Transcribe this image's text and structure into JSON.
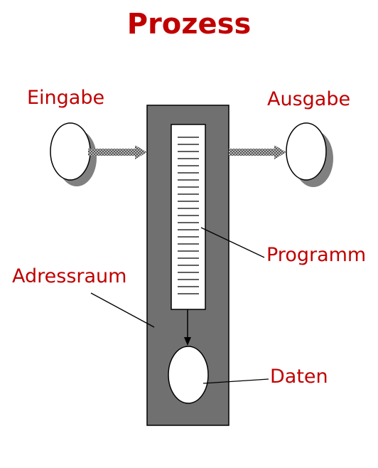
{
  "title": "Prozess",
  "labels": {
    "eingabe": "Eingabe",
    "ausgabe": "Ausgabe",
    "programm": "Programm",
    "adressraum": "Adressraum",
    "daten": "Daten"
  },
  "colors": {
    "accent_text": "#c00000",
    "address_space_fill": "#707070",
    "outline": "#000000",
    "node_fill": "#ffffff",
    "shadow": "#808080",
    "arrow_fill": "#a0a0a0"
  },
  "icons": {
    "input_node": "ellipse",
    "output_node": "ellipse",
    "data_node": "ellipse",
    "program_memory": "lined-rectangle"
  }
}
